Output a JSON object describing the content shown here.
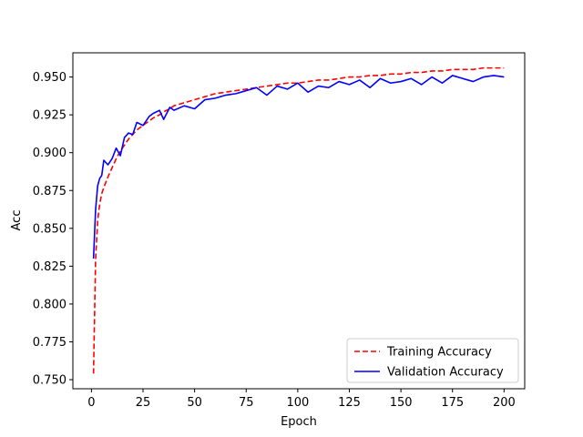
{
  "chart_data": {
    "type": "line",
    "xlabel": "Epoch",
    "ylabel": "Acc",
    "xlim": [
      -9,
      210
    ],
    "ylim": [
      0.744,
      0.966
    ],
    "xticks": [
      0,
      25,
      50,
      75,
      100,
      125,
      150,
      175,
      200
    ],
    "xtick_labels": [
      "0",
      "25",
      "50",
      "75",
      "100",
      "125",
      "150",
      "175",
      "200"
    ],
    "yticks": [
      0.75,
      0.775,
      0.8,
      0.825,
      0.85,
      0.875,
      0.9,
      0.925,
      0.95
    ],
    "ytick_labels": [
      "0.750",
      "0.775",
      "0.800",
      "0.825",
      "0.850",
      "0.875",
      "0.900",
      "0.925",
      "0.950"
    ],
    "grid": false,
    "legend_position": "lower-right",
    "x": [
      1,
      2,
      3,
      4,
      5,
      6,
      8,
      10,
      12,
      14,
      16,
      18,
      20,
      22,
      25,
      28,
      30,
      33,
      35,
      38,
      40,
      45,
      50,
      55,
      60,
      65,
      70,
      75,
      80,
      85,
      90,
      95,
      100,
      105,
      110,
      115,
      120,
      125,
      130,
      135,
      140,
      145,
      150,
      155,
      160,
      165,
      170,
      175,
      180,
      185,
      190,
      195,
      200
    ],
    "series": [
      {
        "name": "Training Accuracy",
        "color": "#ff0000",
        "dash": "dashed",
        "values": [
          0.754,
          0.829,
          0.855,
          0.866,
          0.873,
          0.877,
          0.884,
          0.89,
          0.896,
          0.901,
          0.905,
          0.909,
          0.912,
          0.915,
          0.918,
          0.921,
          0.923,
          0.925,
          0.927,
          0.929,
          0.931,
          0.933,
          0.935,
          0.937,
          0.939,
          0.94,
          0.941,
          0.942,
          0.943,
          0.944,
          0.945,
          0.946,
          0.946,
          0.947,
          0.948,
          0.948,
          0.949,
          0.95,
          0.95,
          0.951,
          0.951,
          0.952,
          0.952,
          0.953,
          0.953,
          0.954,
          0.954,
          0.955,
          0.955,
          0.955,
          0.956,
          0.956,
          0.956
        ]
      },
      {
        "name": "Validation Accuracy",
        "color": "#0000ff",
        "dash": "solid",
        "values": [
          0.83,
          0.862,
          0.878,
          0.883,
          0.885,
          0.895,
          0.892,
          0.896,
          0.903,
          0.898,
          0.91,
          0.913,
          0.912,
          0.92,
          0.918,
          0.924,
          0.926,
          0.928,
          0.922,
          0.93,
          0.928,
          0.931,
          0.929,
          0.935,
          0.936,
          0.938,
          0.939,
          0.941,
          0.943,
          0.938,
          0.944,
          0.942,
          0.946,
          0.94,
          0.944,
          0.943,
          0.947,
          0.945,
          0.948,
          0.943,
          0.949,
          0.946,
          0.947,
          0.949,
          0.945,
          0.95,
          0.946,
          0.951,
          0.949,
          0.947,
          0.95,
          0.951,
          0.95
        ]
      }
    ]
  }
}
